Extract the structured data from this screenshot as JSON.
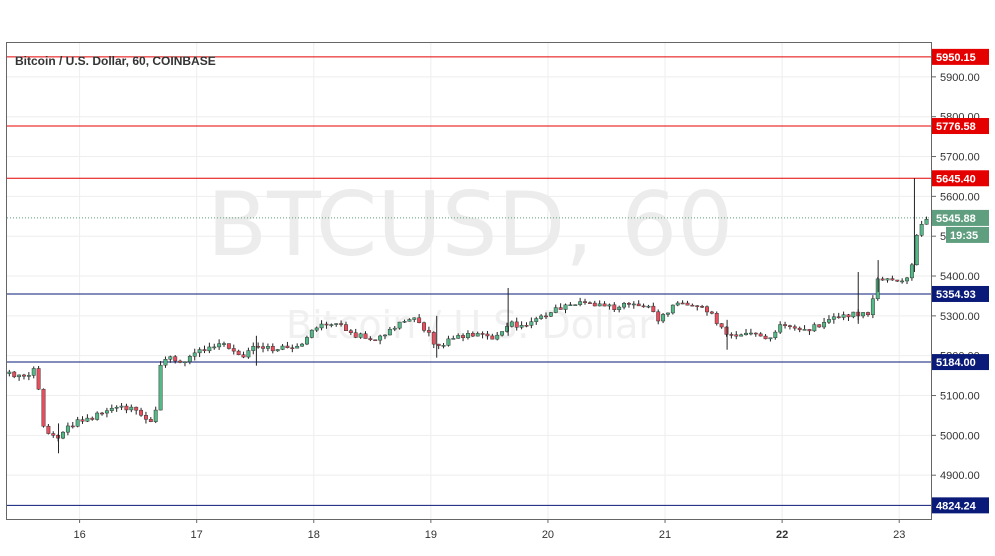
{
  "chart_data": {
    "type": "candlestick",
    "title": "Bitcoin / U.S. Dollar, 60, COINBASE",
    "watermark": {
      "symbol": "BTCUSD, 60",
      "description": "Bitcoin / U.S. Dollar"
    },
    "ylim": [
      4790,
      5985
    ],
    "y_ticks": [
      {
        "value": 4900,
        "label": "4900.00"
      },
      {
        "value": 5000,
        "label": "5000.00"
      },
      {
        "value": 5100,
        "label": "5100.00"
      },
      {
        "value": 5200,
        "label": "5200.00"
      },
      {
        "value": 5300,
        "label": "5300.00"
      },
      {
        "value": 5400,
        "label": "5400.00"
      },
      {
        "value": 5500,
        "label": "5500.00"
      },
      {
        "value": 5600,
        "label": "5600.00"
      },
      {
        "value": 5700,
        "label": "5700.00"
      },
      {
        "value": 5800,
        "label": "5800.00"
      },
      {
        "value": 5900,
        "label": "5900.00"
      }
    ],
    "x_ticks": [
      {
        "day": 16,
        "label": "16"
      },
      {
        "day": 17,
        "label": "17"
      },
      {
        "day": 18,
        "label": "18"
      },
      {
        "day": 19,
        "label": "19"
      },
      {
        "day": 20,
        "label": "20"
      },
      {
        "day": 21,
        "label": "21"
      },
      {
        "day": 22,
        "label": "22",
        "bold": true
      },
      {
        "day": 23,
        "label": "23"
      }
    ],
    "x_range_days": [
      15.38,
      23.28
    ],
    "levels": [
      {
        "value": 5950.15,
        "label": "5950.15",
        "color": "#e50000",
        "kind": "resistance"
      },
      {
        "value": 5776.58,
        "label": "5776.58",
        "color": "#e50000",
        "kind": "resistance"
      },
      {
        "value": 5645.4,
        "label": "5645.40",
        "color": "#e50000",
        "kind": "resistance"
      },
      {
        "value": 5354.93,
        "label": "5354.93",
        "color": "#0a1a78",
        "kind": "support"
      },
      {
        "value": 5184.0,
        "label": "5184.00",
        "color": "#0a1a78",
        "kind": "support"
      },
      {
        "value": 4824.24,
        "label": "4824.24",
        "color": "#0a1a78",
        "kind": "support"
      }
    ],
    "last_price": {
      "value": 5545.88,
      "label": "5545.88",
      "countdown": "19:35",
      "color": "#5f9e7e"
    },
    "colors": {
      "up": "#53b987",
      "down": "#eb4d5c",
      "wick": "#222222",
      "grid": "#eeeeee",
      "border": "#666666"
    },
    "anchors": [
      [
        15.4,
        5155
      ],
      [
        15.55,
        5150
      ],
      [
        15.62,
        5170
      ],
      [
        15.7,
        5010
      ],
      [
        15.8,
        4990
      ],
      [
        15.9,
        5025
      ],
      [
        16.05,
        5040
      ],
      [
        16.2,
        5055
      ],
      [
        16.35,
        5075
      ],
      [
        16.48,
        5060
      ],
      [
        16.6,
        5030
      ],
      [
        16.66,
        5065
      ],
      [
        16.7,
        5200
      ],
      [
        16.9,
        5185
      ],
      [
        17.1,
        5225
      ],
      [
        17.25,
        5230
      ],
      [
        17.4,
        5195
      ],
      [
        17.5,
        5230
      ],
      [
        17.7,
        5215
      ],
      [
        17.9,
        5230
      ],
      [
        18.05,
        5280
      ],
      [
        18.2,
        5285
      ],
      [
        18.35,
        5250
      ],
      [
        18.55,
        5245
      ],
      [
        18.7,
        5270
      ],
      [
        18.8,
        5300
      ],
      [
        18.9,
        5285
      ],
      [
        19.05,
        5225
      ],
      [
        19.2,
        5245
      ],
      [
        19.4,
        5255
      ],
      [
        19.55,
        5245
      ],
      [
        19.65,
        5280
      ],
      [
        19.8,
        5275
      ],
      [
        19.95,
        5300
      ],
      [
        20.1,
        5320
      ],
      [
        20.25,
        5335
      ],
      [
        20.4,
        5330
      ],
      [
        20.55,
        5320
      ],
      [
        20.7,
        5330
      ],
      [
        20.85,
        5320
      ],
      [
        20.95,
        5290
      ],
      [
        21.05,
        5320
      ],
      [
        21.15,
        5335
      ],
      [
        21.3,
        5325
      ],
      [
        21.4,
        5300
      ],
      [
        21.5,
        5260
      ],
      [
        21.6,
        5250
      ],
      [
        21.75,
        5265
      ],
      [
        21.9,
        5240
      ],
      [
        22.0,
        5285
      ],
      [
        22.1,
        5270
      ],
      [
        22.2,
        5265
      ],
      [
        22.35,
        5280
      ],
      [
        22.5,
        5300
      ],
      [
        22.65,
        5305
      ],
      [
        22.75,
        5310
      ],
      [
        22.82,
        5395
      ],
      [
        22.95,
        5385
      ],
      [
        23.05,
        5390
      ],
      [
        23.1,
        5420
      ],
      [
        23.16,
        5520
      ],
      [
        23.2,
        5535
      ],
      [
        23.26,
        5545.88
      ]
    ],
    "highlights": [
      {
        "day": 19.66,
        "high": 5370,
        "low": 5250
      },
      {
        "day": 19.05,
        "high": 5300,
        "low": 5195
      },
      {
        "day": 15.82,
        "high": 5030,
        "low": 4955
      },
      {
        "day": 21.53,
        "high": 5290,
        "low": 5215
      },
      {
        "day": 22.65,
        "high": 5410,
        "low": 5280
      },
      {
        "day": 22.82,
        "high": 5440,
        "low": 5360
      },
      {
        "day": 23.13,
        "high": 5645.4,
        "low": 5410
      },
      {
        "day": 17.51,
        "high": 5250,
        "low": 5175
      }
    ]
  }
}
